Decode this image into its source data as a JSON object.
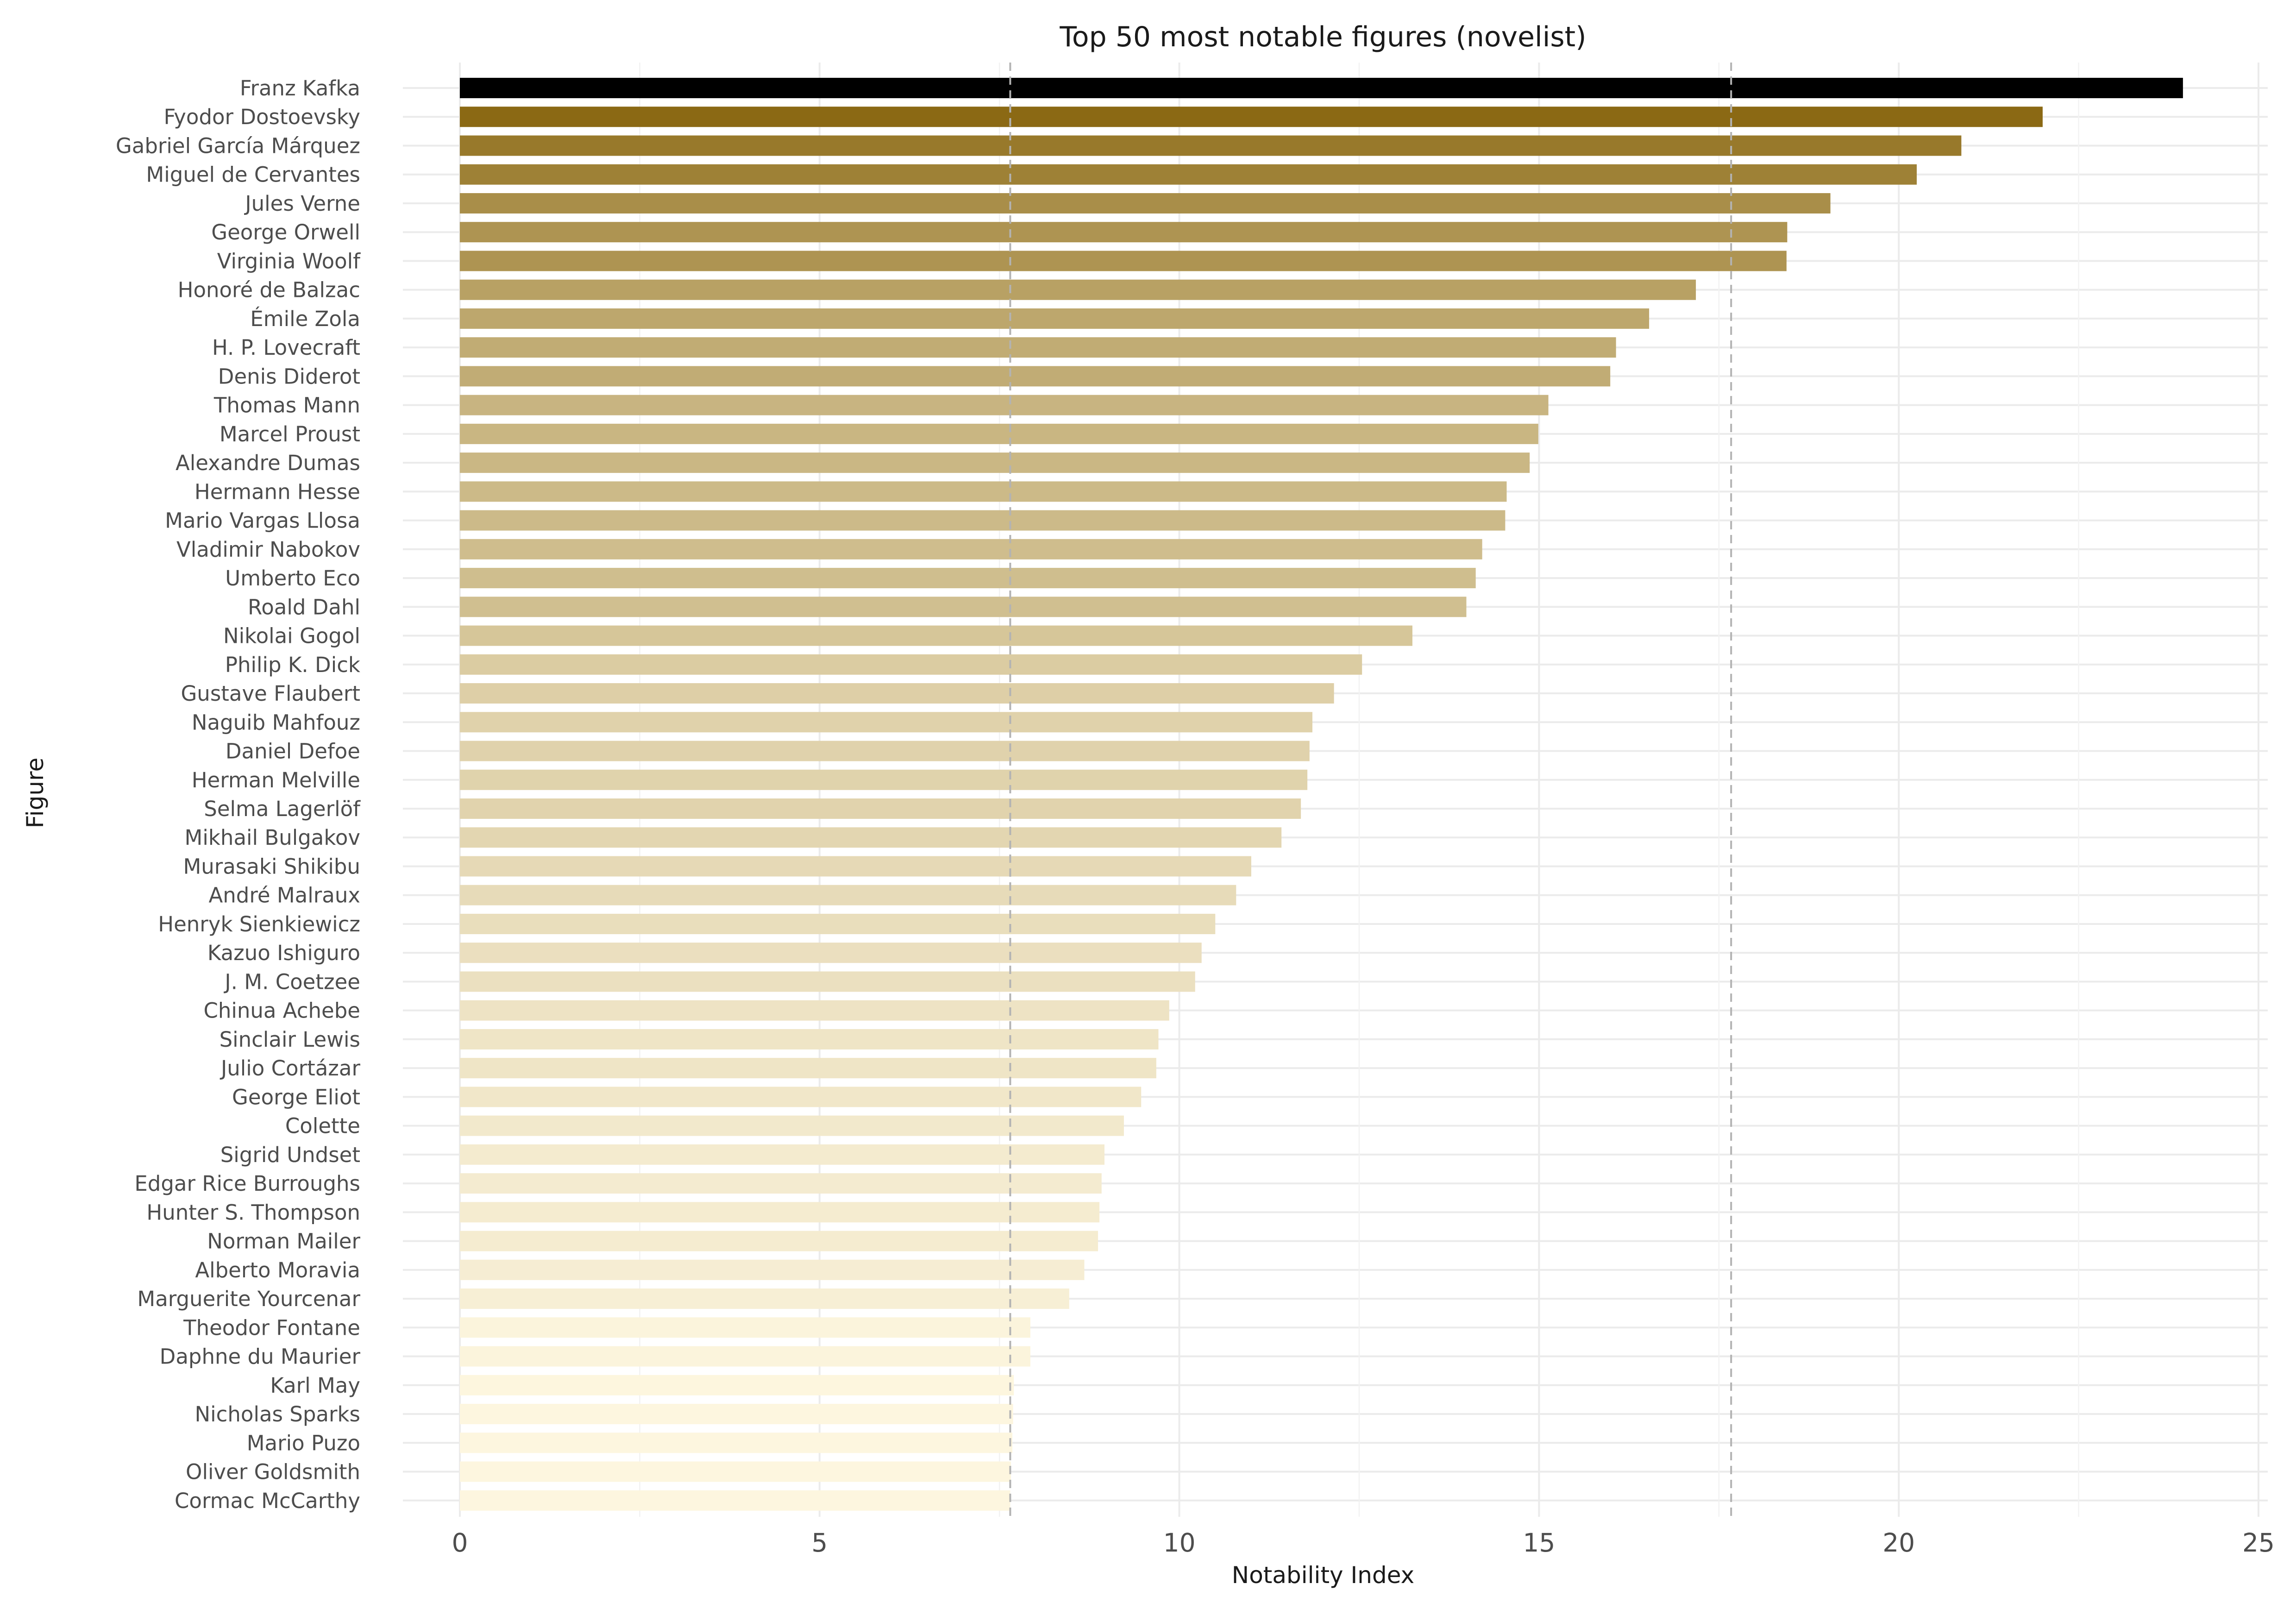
{
  "chart_data": {
    "type": "bar",
    "orientation": "horizontal",
    "title": "Top 50 most notable figures (novelist)",
    "xlabel": "Notability Index",
    "ylabel": "Figure",
    "xlim": [
      0,
      25
    ],
    "xticks": [
      0,
      5,
      10,
      15,
      20,
      25
    ],
    "grid": true,
    "legend": "none",
    "highlight_color": "#000000",
    "color_dark": "#8B6914",
    "color_light": "#FDF6DF",
    "reference_lines": [
      7.65,
      17.67
    ],
    "categories": [
      "Franz Kafka",
      "Fyodor Dostoevsky",
      "Gabriel García Márquez",
      "Miguel de Cervantes",
      "Jules Verne",
      "George Orwell",
      "Virginia Woolf",
      "Honoré de Balzac",
      "Émile Zola",
      "H. P. Lovecraft",
      "Denis Diderot",
      "Thomas Mann",
      "Marcel Proust",
      "Alexandre Dumas",
      "Hermann Hesse",
      "Mario Vargas Llosa",
      "Vladimir Nabokov",
      "Umberto Eco",
      "Roald Dahl",
      "Nikolai Gogol",
      "Philip K. Dick",
      "Gustave Flaubert",
      "Naguib Mahfouz",
      "Daniel Defoe",
      "Herman Melville",
      "Selma Lagerlöf",
      "Mikhail Bulgakov",
      "Murasaki Shikibu",
      "André Malraux",
      "Henryk Sienkiewicz",
      "Kazuo Ishiguro",
      "J. M. Coetzee",
      "Chinua Achebe",
      "Sinclair Lewis",
      "Julio Cortázar",
      "George Eliot",
      "Colette",
      "Sigrid Undset",
      "Edgar Rice Burroughs",
      "Hunter S. Thompson",
      "Norman Mailer",
      "Alberto Moravia",
      "Marguerite Yourcenar",
      "Theodor Fontane",
      "Daphne du Maurier",
      "Karl May",
      "Nicholas Sparks",
      "Mario Puzo",
      "Oliver Goldsmith",
      "Cormac McCarthy"
    ],
    "values": [
      23.95,
      22.0,
      20.87,
      20.25,
      19.05,
      18.45,
      18.44,
      17.18,
      16.53,
      16.07,
      15.99,
      15.13,
      14.99,
      14.87,
      14.55,
      14.53,
      14.21,
      14.12,
      13.99,
      13.24,
      12.54,
      12.15,
      11.85,
      11.81,
      11.78,
      11.69,
      11.42,
      11.0,
      10.79,
      10.5,
      10.31,
      10.22,
      9.86,
      9.71,
      9.68,
      9.47,
      9.23,
      8.96,
      8.92,
      8.89,
      8.87,
      8.68,
      8.47,
      7.93,
      7.93,
      7.7,
      7.69,
      7.68,
      7.66,
      7.65
    ]
  }
}
